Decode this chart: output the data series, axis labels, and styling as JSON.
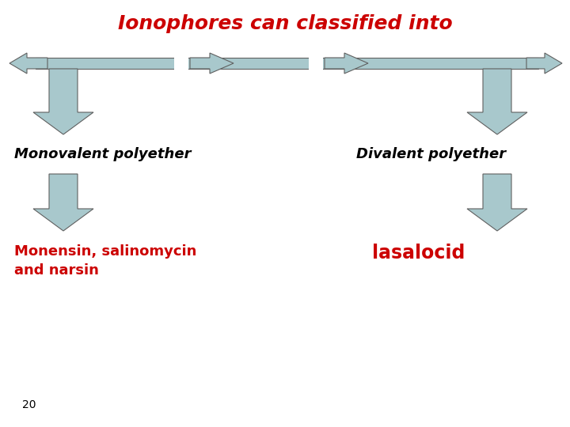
{
  "title": "Ionophores can classified into",
  "title_color": "#cc0000",
  "title_fontsize": 18,
  "title_fontstyle": "italic",
  "title_fontweight": "bold",
  "background_color": "#ffffff",
  "arrow_color": "#a8c8cc",
  "arrow_edge_color": "#606060",
  "monovalent_label": "Monovalent polyether",
  "monovalent_label_color": "#000000",
  "monovalent_label_fontstyle": "italic",
  "monovalent_label_fontweight": "bold",
  "divalent_label": "Divalent polyether",
  "divalent_label_color": "#000000",
  "divalent_label_fontstyle": "italic",
  "divalent_label_fontweight": "bold",
  "monensin_label": "Monensin, salinomycin\nand narsin",
  "monensin_label_color": "#cc0000",
  "monensin_label_fontweight": "bold",
  "lasalocid_label": "lasalocid",
  "lasalocid_label_color": "#cc0000",
  "lasalocid_label_fontweight": "bold",
  "page_number": "20",
  "page_number_fontsize": 10
}
